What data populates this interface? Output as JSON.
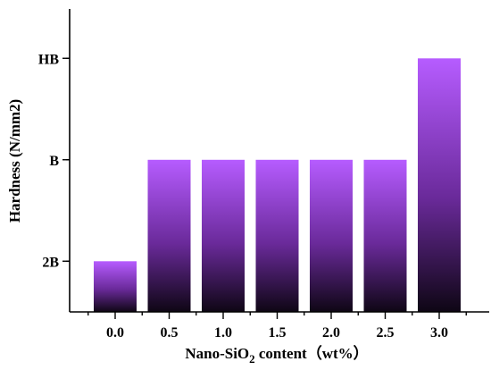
{
  "chart_data": {
    "type": "bar",
    "categories": [
      "0.0",
      "0.5",
      "1.0",
      "1.5",
      "2.0",
      "2.5",
      "3.0"
    ],
    "values": [
      "2B",
      "B",
      "B",
      "B",
      "B",
      "B",
      "HB"
    ],
    "value_levels": [
      1,
      2,
      2,
      2,
      2,
      2,
      3
    ],
    "y_tick_labels": [
      "2B",
      "B",
      "HB"
    ],
    "ylim": [
      0.5,
      3.5
    ],
    "xlabel": {
      "prefix": "Nano-SiO",
      "subscript": "2",
      "suffix": " content（wt%）"
    },
    "ylabel": "Hardness (N/mm2)",
    "grid": false,
    "colors": {
      "bar_top": "#b65cff",
      "bar_mid": "#6a2a9a",
      "bar_bottom": "#0e0614"
    }
  }
}
